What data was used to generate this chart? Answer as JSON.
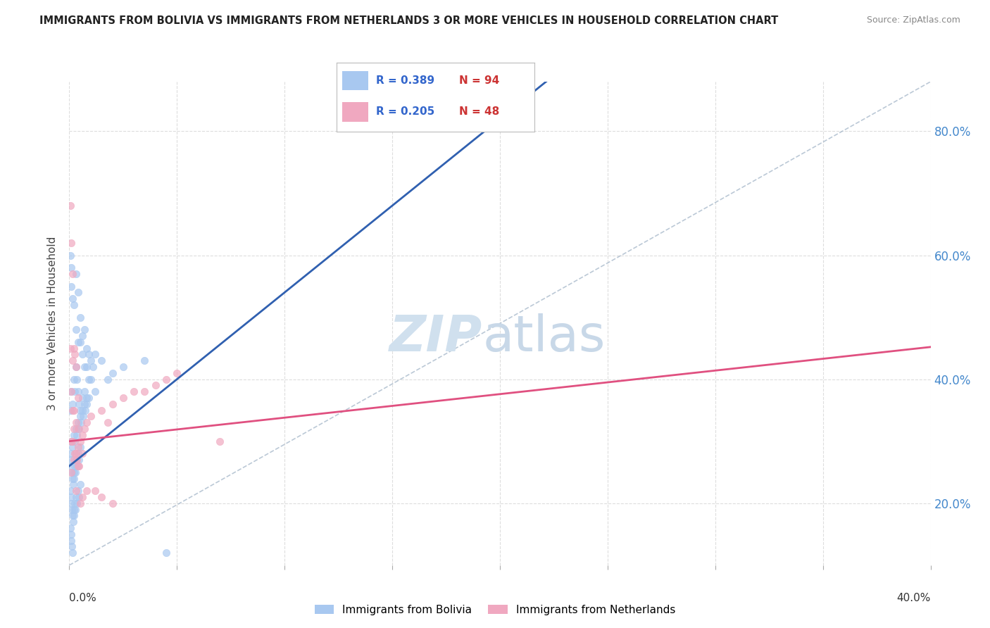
{
  "title": "IMMIGRANTS FROM BOLIVIA VS IMMIGRANTS FROM NETHERLANDS 3 OR MORE VEHICLES IN HOUSEHOLD CORRELATION CHART",
  "source": "Source: ZipAtlas.com",
  "ylabel": "3 or more Vehicles in Household",
  "xmin": 0.0,
  "xmax": 40.0,
  "ymin": 10.0,
  "ymax": 88.0,
  "yticks": [
    20.0,
    40.0,
    60.0,
    80.0
  ],
  "ytick_labels": [
    "20.0%",
    "40.0%",
    "60.0%",
    "80.0%"
  ],
  "bolivia_color": "#A8C8F0",
  "netherlands_color": "#F0A8C0",
  "bolivia_line_color": "#3060B0",
  "netherlands_line_color": "#E05080",
  "bolivia_R": 0.389,
  "bolivia_N": 94,
  "netherlands_R": 0.205,
  "netherlands_N": 48,
  "dashed_line_color": "#AABBCC",
  "bolivia_scatter": [
    [
      0.3,
      57
    ],
    [
      0.4,
      54
    ],
    [
      0.5,
      50
    ],
    [
      0.6,
      47
    ],
    [
      0.7,
      48
    ],
    [
      0.8,
      45
    ],
    [
      0.9,
      44
    ],
    [
      1.0,
      43
    ],
    [
      1.1,
      42
    ],
    [
      1.2,
      44
    ],
    [
      1.5,
      43
    ],
    [
      0.2,
      52
    ],
    [
      0.3,
      48
    ],
    [
      0.4,
      46
    ],
    [
      0.5,
      46
    ],
    [
      0.6,
      44
    ],
    [
      0.7,
      42
    ],
    [
      0.8,
      42
    ],
    [
      0.9,
      40
    ],
    [
      1.0,
      40
    ],
    [
      0.1,
      30
    ],
    [
      0.15,
      29
    ],
    [
      0.2,
      31
    ],
    [
      0.25,
      30
    ],
    [
      0.3,
      32
    ],
    [
      0.35,
      31
    ],
    [
      0.4,
      33
    ],
    [
      0.45,
      32
    ],
    [
      0.5,
      34
    ],
    [
      0.55,
      33
    ],
    [
      0.6,
      35
    ],
    [
      0.65,
      34
    ],
    [
      0.7,
      36
    ],
    [
      0.75,
      35
    ],
    [
      0.8,
      37
    ],
    [
      0.05,
      28
    ],
    [
      0.08,
      27
    ],
    [
      0.1,
      26
    ],
    [
      0.12,
      25
    ],
    [
      0.15,
      24
    ],
    [
      0.18,
      23
    ],
    [
      0.2,
      25
    ],
    [
      0.22,
      24
    ],
    [
      0.25,
      26
    ],
    [
      0.28,
      25
    ],
    [
      0.3,
      27
    ],
    [
      0.35,
      26
    ],
    [
      0.4,
      28
    ],
    [
      0.45,
      27
    ],
    [
      0.5,
      29
    ],
    [
      0.05,
      22
    ],
    [
      0.08,
      21
    ],
    [
      0.1,
      20
    ],
    [
      0.12,
      19
    ],
    [
      0.15,
      18
    ],
    [
      0.18,
      17
    ],
    [
      0.2,
      19
    ],
    [
      0.22,
      18
    ],
    [
      0.25,
      20
    ],
    [
      0.28,
      19
    ],
    [
      0.3,
      21
    ],
    [
      0.35,
      20
    ],
    [
      0.4,
      22
    ],
    [
      0.45,
      21
    ],
    [
      0.5,
      23
    ],
    [
      0.05,
      16
    ],
    [
      0.08,
      15
    ],
    [
      0.1,
      14
    ],
    [
      0.12,
      13
    ],
    [
      0.15,
      12
    ],
    [
      0.05,
      35
    ],
    [
      0.1,
      38
    ],
    [
      0.15,
      36
    ],
    [
      0.2,
      40
    ],
    [
      0.25,
      38
    ],
    [
      0.3,
      42
    ],
    [
      0.35,
      40
    ],
    [
      0.4,
      38
    ],
    [
      0.45,
      36
    ],
    [
      0.5,
      35
    ],
    [
      3.5,
      43
    ],
    [
      0.1,
      55
    ],
    [
      0.05,
      60
    ],
    [
      0.15,
      53
    ],
    [
      0.08,
      58
    ],
    [
      2.0,
      41
    ],
    [
      0.6,
      37
    ],
    [
      0.7,
      38
    ],
    [
      0.8,
      36
    ],
    [
      0.9,
      37
    ],
    [
      1.2,
      38
    ],
    [
      1.8,
      40
    ],
    [
      2.5,
      42
    ],
    [
      4.5,
      12
    ]
  ],
  "netherlands_scatter": [
    [
      0.05,
      68
    ],
    [
      0.1,
      62
    ],
    [
      0.15,
      57
    ],
    [
      0.05,
      45
    ],
    [
      0.2,
      45
    ],
    [
      0.15,
      43
    ],
    [
      0.3,
      42
    ],
    [
      0.25,
      44
    ],
    [
      0.1,
      38
    ],
    [
      0.2,
      35
    ],
    [
      0.3,
      33
    ],
    [
      0.4,
      32
    ],
    [
      0.15,
      30
    ],
    [
      0.25,
      28
    ],
    [
      0.35,
      27
    ],
    [
      0.45,
      26
    ],
    [
      0.1,
      25
    ],
    [
      0.2,
      27
    ],
    [
      0.3,
      28
    ],
    [
      0.4,
      29
    ],
    [
      0.5,
      30
    ],
    [
      0.6,
      31
    ],
    [
      0.7,
      32
    ],
    [
      0.8,
      33
    ],
    [
      1.0,
      34
    ],
    [
      1.5,
      35
    ],
    [
      2.0,
      36
    ],
    [
      2.5,
      37
    ],
    [
      3.0,
      38
    ],
    [
      3.5,
      38
    ],
    [
      4.0,
      39
    ],
    [
      4.5,
      40
    ],
    [
      5.0,
      41
    ],
    [
      0.3,
      22
    ],
    [
      0.5,
      20
    ],
    [
      0.6,
      21
    ],
    [
      0.8,
      22
    ],
    [
      1.2,
      22
    ],
    [
      1.5,
      21
    ],
    [
      2.0,
      20
    ],
    [
      0.4,
      26
    ],
    [
      0.1,
      30
    ],
    [
      0.2,
      32
    ],
    [
      0.6,
      28
    ],
    [
      7.0,
      30
    ],
    [
      0.15,
      35
    ],
    [
      0.4,
      37
    ],
    [
      1.8,
      33
    ]
  ]
}
